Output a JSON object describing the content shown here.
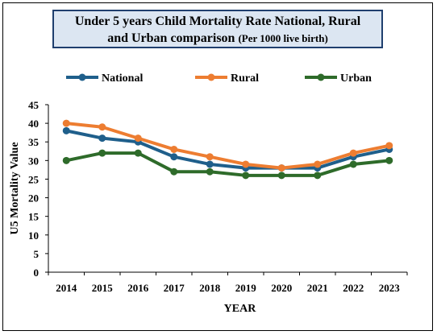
{
  "chart_data": {
    "type": "line",
    "title_line1": "Under 5 years Child Mortality Rate National, Rural",
    "title_line2": "and Urban comparison",
    "title_note": "(Per 1000 live birth)",
    "xlabel": "YEAR",
    "ylabel": "U5 Mortality Value",
    "categories": [
      "2014",
      "2015",
      "2016",
      "2017",
      "2018",
      "2019",
      "2020",
      "2021",
      "2022",
      "2023"
    ],
    "ylim": [
      0,
      45
    ],
    "yticks": [
      0,
      5,
      10,
      15,
      20,
      25,
      30,
      35,
      40,
      45
    ],
    "grid": false,
    "legend_position": "top",
    "series": [
      {
        "name": "National",
        "color": "#1f5f8b",
        "values": [
          38,
          36,
          35,
          31,
          29,
          28,
          28,
          28,
          31,
          33
        ]
      },
      {
        "name": "Rural",
        "color": "#ed7d31",
        "values": [
          40,
          39,
          36,
          33,
          31,
          29,
          28,
          29,
          32,
          34
        ]
      },
      {
        "name": "Urban",
        "color": "#2e6b2a",
        "values": [
          30,
          32,
          32,
          27,
          27,
          26,
          26,
          26,
          29,
          30
        ]
      }
    ]
  }
}
